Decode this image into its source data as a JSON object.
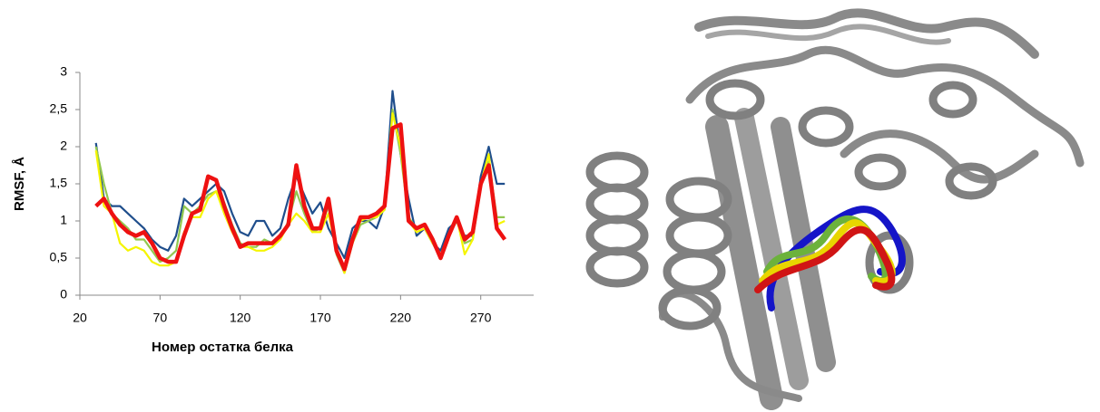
{
  "chart_data": {
    "type": "line",
    "x_label": "Номер остатка белка",
    "y_label": "RMSF, Å",
    "xlim": [
      20,
      303
    ],
    "ylim": [
      0,
      3
    ],
    "xticks": [
      20,
      70,
      120,
      170,
      220,
      270
    ],
    "yticks": [
      0,
      {
        "value": 0.5,
        "label": "0,5"
      },
      1,
      {
        "value": 1.5,
        "label": "1,5"
      },
      2,
      {
        "value": 2.5,
        "label": "2,5"
      },
      3
    ],
    "grid": false,
    "x": [
      30,
      35,
      40,
      45,
      50,
      55,
      60,
      65,
      70,
      75,
      80,
      85,
      90,
      95,
      100,
      105,
      110,
      115,
      120,
      125,
      130,
      135,
      140,
      145,
      150,
      155,
      160,
      165,
      170,
      175,
      180,
      185,
      190,
      195,
      200,
      205,
      210,
      215,
      220,
      225,
      230,
      235,
      240,
      245,
      250,
      255,
      260,
      265,
      270,
      275,
      280,
      285
    ],
    "series": [
      {
        "color": "#1f4e8c",
        "values": [
          2.05,
          1.3,
          1.2,
          1.2,
          1.1,
          1.0,
          0.9,
          0.75,
          0.65,
          0.6,
          0.8,
          1.3,
          1.2,
          1.3,
          1.4,
          1.5,
          1.4,
          1.1,
          0.85,
          0.8,
          1.0,
          1.0,
          0.8,
          0.9,
          1.3,
          1.6,
          1.35,
          1.1,
          1.25,
          0.9,
          0.7,
          0.5,
          0.9,
          1.0,
          1.0,
          0.9,
          1.2,
          2.75,
          1.9,
          1.3,
          0.8,
          0.9,
          0.7,
          0.6,
          0.9,
          1.0,
          0.8,
          0.8,
          1.6,
          2.0,
          1.5,
          1.5
        ]
      },
      {
        "color": "#92c84f",
        "values": [
          2.0,
          1.5,
          1.1,
          1.0,
          0.9,
          0.75,
          0.75,
          0.6,
          0.45,
          0.5,
          0.6,
          1.2,
          1.1,
          1.2,
          1.35,
          1.4,
          1.25,
          0.95,
          0.7,
          0.65,
          0.65,
          0.75,
          0.7,
          0.75,
          1.0,
          1.4,
          1.1,
          0.85,
          0.9,
          1.2,
          0.55,
          0.3,
          0.7,
          0.95,
          1.0,
          1.05,
          1.15,
          2.5,
          1.9,
          1.05,
          0.9,
          0.95,
          0.7,
          0.5,
          0.8,
          1.0,
          0.7,
          0.75,
          1.45,
          1.8,
          1.05,
          1.05
        ]
      },
      {
        "color": "#f5f500",
        "values": [
          1.95,
          1.2,
          1.1,
          0.7,
          0.6,
          0.65,
          0.6,
          0.45,
          0.4,
          0.4,
          0.45,
          0.85,
          1.05,
          1.05,
          1.3,
          1.4,
          1.1,
          0.85,
          0.65,
          0.65,
          0.6,
          0.6,
          0.65,
          0.75,
          0.95,
          1.1,
          1.0,
          0.85,
          0.85,
          1.1,
          0.6,
          0.3,
          0.7,
          1.0,
          1.05,
          1.05,
          1.15,
          2.45,
          2.0,
          1.0,
          0.85,
          0.9,
          0.7,
          0.55,
          0.8,
          1.05,
          0.55,
          0.75,
          1.5,
          1.9,
          0.95,
          1.0
        ]
      },
      {
        "color": "#ee1111",
        "values": [
          1.2,
          1.3,
          1.1,
          0.95,
          0.85,
          0.8,
          0.85,
          0.7,
          0.5,
          0.45,
          0.45,
          0.8,
          1.1,
          1.15,
          1.6,
          1.55,
          1.2,
          0.9,
          0.65,
          0.7,
          0.7,
          0.7,
          0.7,
          0.8,
          0.95,
          1.75,
          1.2,
          0.9,
          0.9,
          1.3,
          0.6,
          0.35,
          0.75,
          1.05,
          1.05,
          1.1,
          1.2,
          2.25,
          2.3,
          1.0,
          0.9,
          0.95,
          0.75,
          0.5,
          0.8,
          1.05,
          0.75,
          0.85,
          1.5,
          1.75,
          0.9,
          0.75
        ]
      }
    ]
  }
}
